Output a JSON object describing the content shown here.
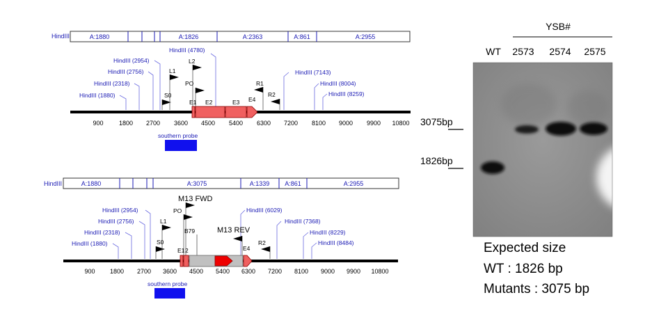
{
  "map_top": {
    "hindiii_label": "HindIII",
    "segments": [
      "A:1880",
      "A:1826",
      "A:2363",
      "A:861",
      "A:2955"
    ],
    "sites": [
      "HindIII (1880)",
      "HindIII (2318)",
      "HindIII (2756)",
      "HindIII (2954)",
      "HindIII (4780)",
      "HindIII (7143)",
      "HindIII (8004)",
      "HindIII (8259)"
    ],
    "primers": [
      "S0",
      "L1",
      "L2",
      "PO",
      "R1",
      "R2"
    ],
    "exons": [
      "E1",
      "E2",
      "E3",
      "E4"
    ],
    "ticks": [
      "900",
      "1800",
      "2700",
      "3600",
      "4500",
      "5400",
      "6300",
      "7200",
      "8100",
      "9000",
      "9900",
      "10800"
    ],
    "probe_label": "southern probe"
  },
  "map_bottom": {
    "hindiii_label": "HindIII",
    "segments": [
      "A:1880",
      "A:3075",
      "A:1339",
      "A:861",
      "A:2955"
    ],
    "sites": [
      "HindIII (1880)",
      "HindIII (2318)",
      "HindIII (2756)",
      "HindIII (2954)",
      "HindIII (6029)",
      "HindIII (7368)",
      "HindIII (8229)",
      "HindIII (8484)"
    ],
    "primers": [
      "S0",
      "L1",
      "PO",
      "B79",
      "R2"
    ],
    "m13_fwd": "M13 FWD",
    "m13_rev": "M13 REV",
    "exons": [
      "E1",
      "2",
      "E4"
    ],
    "ticks": [
      "900",
      "1800",
      "2700",
      "3600",
      "4500",
      "5400",
      "6300",
      "7200",
      "8100",
      "9000",
      "9900",
      "10800"
    ],
    "probe_label": "southern probe"
  },
  "blot": {
    "group_label": "YSB#",
    "lanes": [
      "WT",
      "2573",
      "2574",
      "2575"
    ],
    "size_markers": [
      "3075bp",
      "1826bp"
    ]
  },
  "expected": {
    "title": "Expected size",
    "wt": "WT : 1826 bp",
    "mutants": "Mutants : 3075 bp"
  },
  "colors": {
    "link_blue": "#1a1ab4",
    "exon_red": "#f06060",
    "insert_gray": "#c0c0c0",
    "probe_blue": "#1010ee"
  }
}
